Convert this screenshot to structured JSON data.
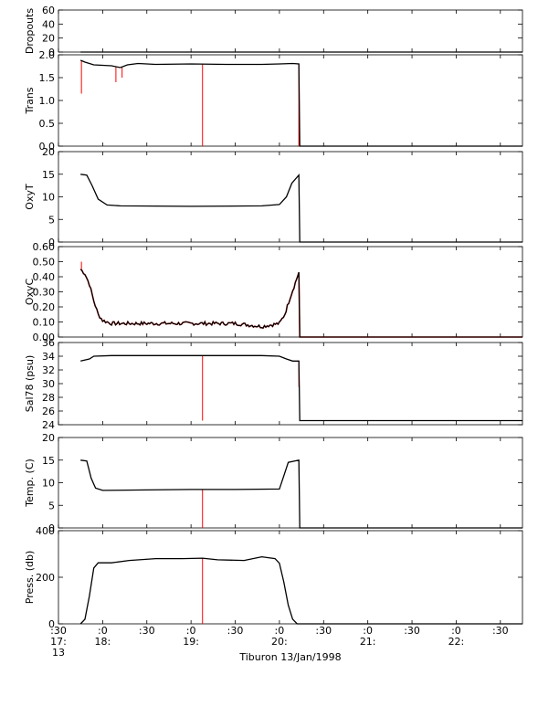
{
  "chart_data": {
    "type": "line",
    "xlabel": "Tiburon 13/Jan/1998",
    "x_range_hours": [
      17.5,
      22.75
    ],
    "x_ticks": [
      {
        "hour": 17.5,
        "lines": [
          ":30",
          "17:",
          "13"
        ]
      },
      {
        "hour": 18.0,
        "lines": [
          ":0",
          "18:"
        ]
      },
      {
        "hour": 18.5,
        "lines": [
          ":30"
        ]
      },
      {
        "hour": 19.0,
        "lines": [
          ":0",
          "19:"
        ]
      },
      {
        "hour": 19.5,
        "lines": [
          ":30"
        ]
      },
      {
        "hour": 20.0,
        "lines": [
          ":0",
          "20:"
        ]
      },
      {
        "hour": 20.5,
        "lines": [
          ":30"
        ]
      },
      {
        "hour": 21.0,
        "lines": [
          ":0",
          "21:"
        ]
      },
      {
        "hour": 21.5,
        "lines": [
          ":30"
        ]
      },
      {
        "hour": 22.0,
        "lines": [
          ":0",
          "22:"
        ]
      },
      {
        "hour": 22.5,
        "lines": [
          ":30"
        ]
      }
    ],
    "colors": {
      "raw": "#ff0000",
      "smoothed": "#000000"
    },
    "panels": [
      {
        "ylabel": "Dropouts",
        "ylim": [
          0,
          60
        ],
        "yticks": [
          0,
          20,
          40,
          60
        ],
        "tick_labels": [
          "0",
          "20",
          "40",
          "60"
        ],
        "points": [
          [
            17.75,
            0
          ],
          [
            22.75,
            0
          ]
        ]
      },
      {
        "ylabel": "Trans",
        "ylim": [
          0.0,
          2.0
        ],
        "yticks": [
          0.0,
          0.5,
          1.0,
          1.5,
          2.0
        ],
        "tick_labels": [
          "0.0",
          "0.5",
          "1.0",
          "1.5",
          "2.0"
        ],
        "points": [
          [
            17.75,
            1.88
          ],
          [
            17.8,
            1.84
          ],
          [
            17.9,
            1.78
          ],
          [
            18.0,
            1.77
          ],
          [
            18.1,
            1.76
          ],
          [
            18.2,
            1.72
          ],
          [
            18.28,
            1.78
          ],
          [
            18.4,
            1.81
          ],
          [
            18.6,
            1.79
          ],
          [
            19.0,
            1.8
          ],
          [
            19.4,
            1.79
          ],
          [
            19.8,
            1.79
          ],
          [
            20.0,
            1.8
          ],
          [
            20.15,
            1.81
          ],
          [
            20.22,
            1.8
          ],
          [
            20.23,
            0.0
          ],
          [
            22.75,
            0.0
          ]
        ],
        "spikes": [
          [
            17.76,
            1.15
          ],
          [
            18.15,
            1.4
          ],
          [
            18.22,
            1.5
          ],
          [
            19.13,
            0.0
          ],
          [
            20.22,
            0.0
          ]
        ]
      },
      {
        "ylabel": "OxyT",
        "ylim": [
          0,
          20
        ],
        "yticks": [
          0,
          5,
          10,
          15,
          20
        ],
        "tick_labels": [
          "0",
          "5",
          "10",
          "15",
          "20"
        ],
        "points": [
          [
            17.75,
            15.0
          ],
          [
            17.82,
            14.8
          ],
          [
            17.88,
            12.5
          ],
          [
            17.95,
            9.5
          ],
          [
            18.05,
            8.2
          ],
          [
            18.2,
            8.0
          ],
          [
            19.0,
            7.9
          ],
          [
            19.8,
            8.0
          ],
          [
            20.0,
            8.3
          ],
          [
            20.08,
            10.0
          ],
          [
            20.14,
            13.0
          ],
          [
            20.22,
            14.8
          ],
          [
            20.23,
            0.0
          ],
          [
            22.75,
            0.0
          ]
        ]
      },
      {
        "ylabel": "OxyC",
        "ylim": [
          0.0,
          0.6
        ],
        "yticks": [
          0.0,
          0.1,
          0.2,
          0.3,
          0.4,
          0.5,
          0.6
        ],
        "tick_labels": [
          "0.00",
          "0.10",
          "0.20",
          "0.30",
          "0.40",
          "0.50",
          "0.60"
        ],
        "points": [
          [
            17.75,
            0.45
          ],
          [
            17.8,
            0.42
          ],
          [
            17.85,
            0.35
          ],
          [
            17.9,
            0.24
          ],
          [
            17.95,
            0.15
          ],
          [
            18.0,
            0.11
          ],
          [
            18.1,
            0.09
          ],
          [
            18.5,
            0.09
          ],
          [
            19.0,
            0.09
          ],
          [
            19.5,
            0.09
          ],
          [
            19.8,
            0.07
          ],
          [
            20.0,
            0.09
          ],
          [
            20.06,
            0.15
          ],
          [
            20.12,
            0.26
          ],
          [
            20.18,
            0.36
          ],
          [
            20.22,
            0.43
          ],
          [
            20.23,
            0.0
          ],
          [
            22.75,
            0.0
          ]
        ],
        "noise": 0.012,
        "spikes": [
          [
            17.76,
            0.5
          ]
        ]
      },
      {
        "ylabel": "Sal78 (psu)",
        "ylim": [
          24,
          36
        ],
        "yticks": [
          24,
          26,
          28,
          30,
          32,
          34,
          36
        ],
        "tick_labels": [
          "24",
          "26",
          "28",
          "30",
          "32",
          "34",
          "36"
        ],
        "points": [
          [
            17.75,
            33.3
          ],
          [
            17.85,
            33.6
          ],
          [
            17.9,
            34.0
          ],
          [
            18.1,
            34.1
          ],
          [
            19.0,
            34.1
          ],
          [
            19.8,
            34.1
          ],
          [
            20.0,
            34.0
          ],
          [
            20.08,
            33.6
          ],
          [
            20.15,
            33.3
          ],
          [
            20.22,
            33.3
          ],
          [
            20.23,
            24.6
          ],
          [
            22.75,
            24.6
          ]
        ],
        "spikes": [
          [
            19.13,
            24.6
          ],
          [
            20.22,
            29.5
          ]
        ]
      },
      {
        "ylabel": "Temp. (C)",
        "ylim": [
          0,
          20
        ],
        "yticks": [
          0,
          5,
          10,
          15,
          20
        ],
        "tick_labels": [
          "0",
          "5",
          "10",
          "15",
          "20"
        ],
        "points": [
          [
            17.75,
            15.0
          ],
          [
            17.82,
            14.8
          ],
          [
            17.87,
            11.0
          ],
          [
            17.92,
            8.8
          ],
          [
            18.0,
            8.3
          ],
          [
            18.5,
            8.4
          ],
          [
            19.0,
            8.5
          ],
          [
            19.5,
            8.5
          ],
          [
            20.0,
            8.6
          ],
          [
            20.05,
            11.5
          ],
          [
            20.1,
            14.5
          ],
          [
            20.22,
            15.0
          ],
          [
            20.23,
            0.0
          ],
          [
            22.75,
            0.0
          ]
        ],
        "spikes": [
          [
            19.13,
            0.0
          ]
        ]
      },
      {
        "ylabel": "Press. (db)",
        "ylim": [
          0,
          400
        ],
        "yticks": [
          0,
          200,
          400
        ],
        "tick_labels": [
          "0",
          "200",
          "400"
        ],
        "points": [
          [
            17.75,
            0
          ],
          [
            17.8,
            20
          ],
          [
            17.85,
            120
          ],
          [
            17.9,
            240
          ],
          [
            17.95,
            262
          ],
          [
            18.1,
            262
          ],
          [
            18.3,
            272
          ],
          [
            18.6,
            280
          ],
          [
            18.9,
            280
          ],
          [
            19.13,
            282
          ],
          [
            19.3,
            275
          ],
          [
            19.6,
            272
          ],
          [
            19.8,
            288
          ],
          [
            19.95,
            280
          ],
          [
            20.0,
            260
          ],
          [
            20.05,
            180
          ],
          [
            20.1,
            80
          ],
          [
            20.15,
            20
          ],
          [
            20.2,
            0
          ],
          [
            22.75,
            0
          ]
        ],
        "spikes": [
          [
            19.13,
            0
          ]
        ]
      }
    ]
  }
}
